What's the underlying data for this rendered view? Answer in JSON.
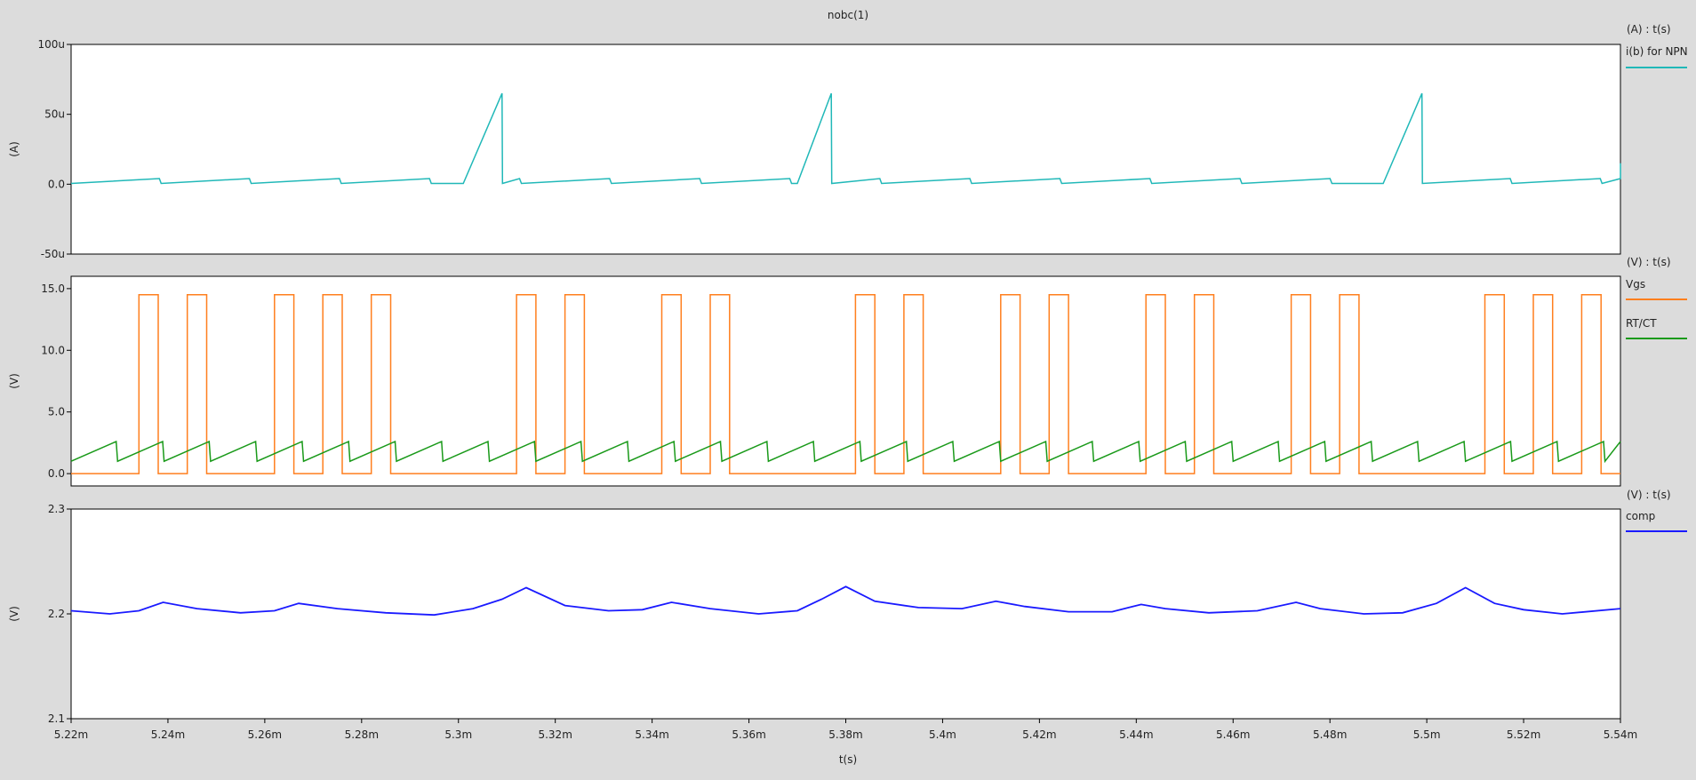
{
  "window_title": "nobc(1)",
  "x_axis": {
    "label": "t(s)",
    "range": [
      0.00522,
      0.00554
    ],
    "ticks": [
      0.00522,
      0.00524,
      0.00526,
      0.00528,
      0.0053,
      0.00532,
      0.00534,
      0.00536,
      0.00538,
      0.0054,
      0.00542,
      0.00544,
      0.00546,
      0.00548,
      0.0055,
      0.00552,
      0.00554
    ],
    "tick_labels": [
      "5.22m",
      "5.24m",
      "5.26m",
      "5.28m",
      "5.3m",
      "5.32m",
      "5.34m",
      "5.36m",
      "5.38m",
      "5.4m",
      "5.42m",
      "5.44m",
      "5.46m",
      "5.48m",
      "5.5m",
      "5.52m",
      "5.54m"
    ]
  },
  "chart_data": [
    {
      "type": "line",
      "axis_header": "(A) : t(s)",
      "ylabel": "(A)",
      "ylim": [
        -5e-05,
        0.0001
      ],
      "yticks": [
        -5e-05,
        0,
        5e-05,
        0.0001
      ],
      "ytick_labels": [
        "-50u",
        "0.0",
        "50u",
        "100u"
      ],
      "series": [
        {
          "name": "i(b) for NPN",
          "color": "#20b8b8",
          "waveform": "periodic ramp",
          "baseline_period": 1.86e-05,
          "baseline_low": 5e-07,
          "baseline_high": 4e-06,
          "spike_starts": [
            0.005301,
            0.00537,
            0.005491
          ],
          "spike_peak_times": [
            0.005309,
            0.005377,
            0.005499
          ],
          "spike_peak": 6.5e-05,
          "tail_value_at_end": 1.5e-05
        }
      ]
    },
    {
      "type": "line",
      "axis_header": "(V) : t(s)",
      "ylabel": "(V)",
      "ylim": [
        -1.0,
        16.0
      ],
      "yticks": [
        0,
        5,
        10,
        15
      ],
      "ytick_labels": [
        "0.0",
        "5.0",
        "10.0",
        "15.0"
      ],
      "series": [
        {
          "name": "Vgs",
          "color": "#ff7f1e",
          "low": 0.0,
          "high": 14.5,
          "pulses": [
            [
              0.005234,
              0.005238
            ],
            [
              0.005244,
              0.005248
            ],
            [
              0.005262,
              0.005266
            ],
            [
              0.005272,
              0.005276
            ],
            [
              0.005282,
              0.005286
            ],
            [
              0.005312,
              0.005316
            ],
            [
              0.005322,
              0.005326
            ],
            [
              0.005342,
              0.005346
            ],
            [
              0.005352,
              0.005356
            ],
            [
              0.005382,
              0.005386
            ],
            [
              0.005392,
              0.005396
            ],
            [
              0.005412,
              0.005416
            ],
            [
              0.005422,
              0.005426
            ],
            [
              0.005442,
              0.005446
            ],
            [
              0.005452,
              0.005456
            ],
            [
              0.005472,
              0.005476
            ],
            [
              0.005482,
              0.005486
            ],
            [
              0.005512,
              0.005516
            ],
            [
              0.005522,
              0.005526
            ],
            [
              0.005532,
              0.005536
            ]
          ]
        },
        {
          "name": "RT/CT",
          "color": "#1a9a1a",
          "waveform": "sawtooth",
          "period": 9.6e-06,
          "low": 1.0,
          "high": 2.6
        }
      ]
    },
    {
      "type": "line",
      "axis_header": "(V) : t(s)",
      "ylabel": "(V)",
      "ylim": [
        2.1,
        2.3
      ],
      "yticks": [
        2.1,
        2.2,
        2.3
      ],
      "ytick_labels": [
        "2.1",
        "2.2",
        "2.3"
      ],
      "series": [
        {
          "name": "comp",
          "color": "#1a1aff",
          "x": [
            0.00522,
            0.005228,
            0.005234,
            0.005239,
            0.005246,
            0.005255,
            0.005262,
            0.005267,
            0.005275,
            0.005285,
            0.005295,
            0.005303,
            0.005309,
            0.005314,
            0.005322,
            0.005331,
            0.005338,
            0.005344,
            0.005352,
            0.005362,
            0.00537,
            0.005375,
            0.00538,
            0.005386,
            0.005395,
            0.005404,
            0.005411,
            0.005417,
            0.005426,
            0.005435,
            0.005441,
            0.005446,
            0.005455,
            0.005465,
            0.005473,
            0.005478,
            0.005487,
            0.005495,
            0.005502,
            0.005508,
            0.005514,
            0.00552,
            0.005528,
            0.00554
          ],
          "y": [
            2.203,
            2.2,
            2.203,
            2.211,
            2.205,
            2.201,
            2.203,
            2.21,
            2.205,
            2.201,
            2.199,
            2.205,
            2.214,
            2.225,
            2.208,
            2.203,
            2.204,
            2.211,
            2.205,
            2.2,
            2.203,
            2.214,
            2.226,
            2.212,
            2.206,
            2.205,
            2.212,
            2.207,
            2.202,
            2.202,
            2.209,
            2.205,
            2.201,
            2.203,
            2.211,
            2.205,
            2.2,
            2.201,
            2.21,
            2.225,
            2.21,
            2.204,
            2.2,
            2.205
          ]
        }
      ]
    }
  ]
}
